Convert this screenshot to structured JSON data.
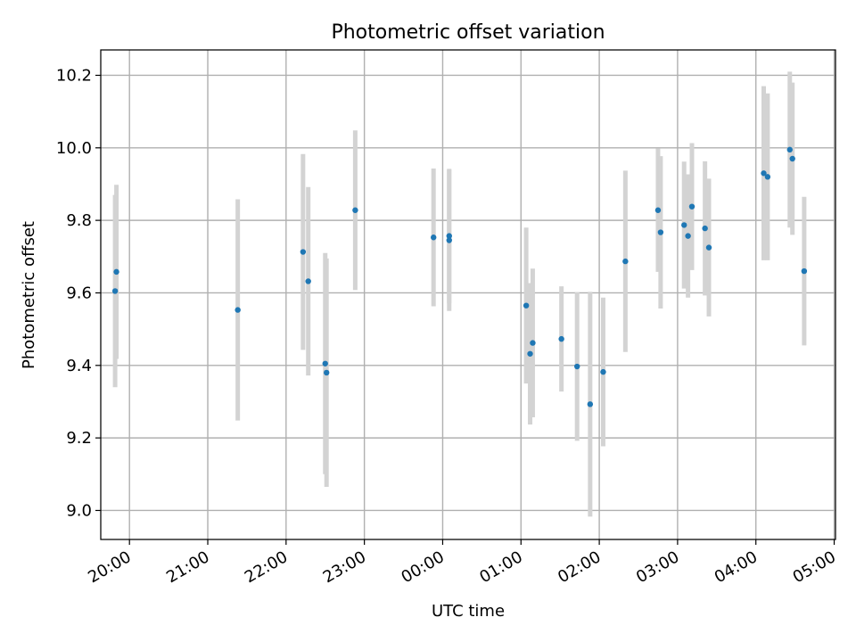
{
  "chart_data": {
    "type": "scatter",
    "title": "Photometric offset variation",
    "xlabel": "UTC time",
    "ylabel": "Photometric offset",
    "xlim": [
      "19:38",
      "05:01"
    ],
    "ylim": [
      8.92,
      10.27
    ],
    "grid": true,
    "x_ticks": [
      "20:00",
      "21:00",
      "22:00",
      "23:00",
      "00:00",
      "01:00",
      "02:00",
      "03:00",
      "04:00",
      "05:00"
    ],
    "y_ticks": [
      "9.0",
      "9.2",
      "9.4",
      "9.6",
      "9.8",
      "10.0",
      "10.2"
    ],
    "colors": {
      "point": "#1f77b4",
      "errorbar": "#d3d3d3",
      "grid": "#b0b0b0"
    },
    "points": [
      {
        "x": "19:49",
        "y": 9.605,
        "err": 0.265
      },
      {
        "x": "19:50",
        "y": 9.658,
        "err": 0.24
      },
      {
        "x": "21:23",
        "y": 9.553,
        "err": 0.305
      },
      {
        "x": "22:13",
        "y": 9.713,
        "err": 0.27
      },
      {
        "x": "22:17",
        "y": 9.632,
        "err": 0.26
      },
      {
        "x": "22:30",
        "y": 9.405,
        "err": 0.305
      },
      {
        "x": "22:31",
        "y": 9.38,
        "err": 0.315
      },
      {
        "x": "22:53",
        "y": 9.828,
        "err": 0.22
      },
      {
        "x": "23:53",
        "y": 9.753,
        "err": 0.19
      },
      {
        "x": "00:05",
        "y": 9.757,
        "err": 0.185
      },
      {
        "x": "00:05",
        "y": 9.745,
        "err": 0.195
      },
      {
        "x": "01:04",
        "y": 9.565,
        "err": 0.215
      },
      {
        "x": "01:07",
        "y": 9.432,
        "err": 0.195
      },
      {
        "x": "01:09",
        "y": 9.462,
        "err": 0.205
      },
      {
        "x": "01:31",
        "y": 9.473,
        "err": 0.145
      },
      {
        "x": "01:43",
        "y": 9.397,
        "err": 0.205
      },
      {
        "x": "01:53",
        "y": 9.293,
        "err": 0.31
      },
      {
        "x": "02:03",
        "y": 9.382,
        "err": 0.205
      },
      {
        "x": "02:20",
        "y": 9.687,
        "err": 0.25
      },
      {
        "x": "02:45",
        "y": 9.828,
        "err": 0.17
      },
      {
        "x": "02:47",
        "y": 9.767,
        "err": 0.21
      },
      {
        "x": "03:05",
        "y": 9.787,
        "err": 0.175
      },
      {
        "x": "03:08",
        "y": 9.757,
        "err": 0.17
      },
      {
        "x": "03:11",
        "y": 9.838,
        "err": 0.175
      },
      {
        "x": "03:21",
        "y": 9.778,
        "err": 0.185
      },
      {
        "x": "03:24",
        "y": 9.725,
        "err": 0.19
      },
      {
        "x": "04:06",
        "y": 9.93,
        "err": 0.24
      },
      {
        "x": "04:09",
        "y": 9.92,
        "err": 0.23
      },
      {
        "x": "04:26",
        "y": 9.995,
        "err": 0.215
      },
      {
        "x": "04:28",
        "y": 9.97,
        "err": 0.21
      },
      {
        "x": "04:37",
        "y": 9.66,
        "err": 0.205
      }
    ]
  }
}
